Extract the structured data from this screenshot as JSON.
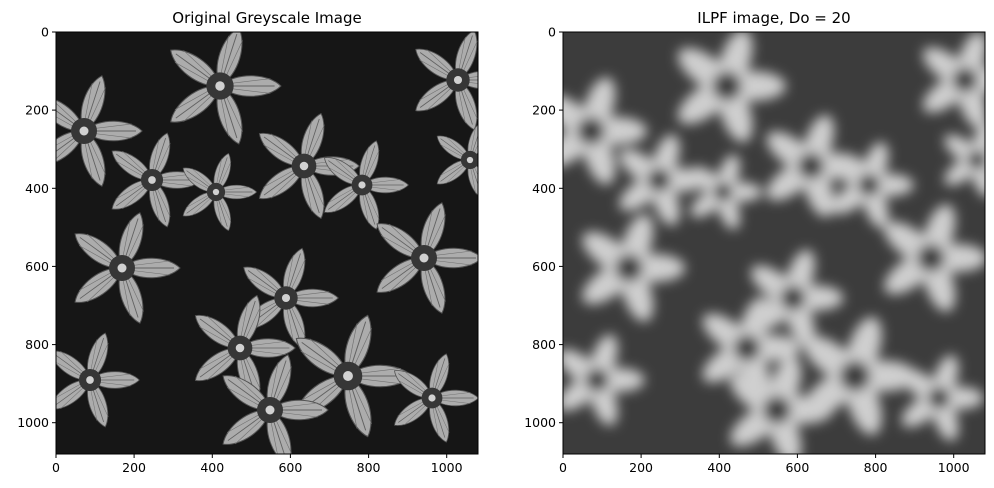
{
  "chart_data": [
    {
      "type": "heatmap",
      "title": "Original Greyscale Image",
      "xlabel": "",
      "ylabel": "",
      "xlim": [
        0,
        1080
      ],
      "ylim": [
        1080,
        0
      ],
      "x_ticks": [
        0,
        200,
        400,
        600,
        800,
        1000
      ],
      "y_ticks": [
        0,
        200,
        400,
        600,
        800,
        1000
      ],
      "image_content": "grayscale photo of flowers",
      "grid": false
    },
    {
      "type": "heatmap",
      "title": "ILPF image, Do = 20",
      "xlabel": "",
      "ylabel": "",
      "xlim": [
        0,
        1080
      ],
      "ylim": [
        1080,
        0
      ],
      "x_ticks": [
        0,
        200,
        400,
        600,
        800,
        1000
      ],
      "y_ticks": [
        0,
        200,
        400,
        600,
        800,
        1000
      ],
      "image_content": "low-pass filtered (blurred) grayscale photo of flowers",
      "grid": false
    }
  ]
}
